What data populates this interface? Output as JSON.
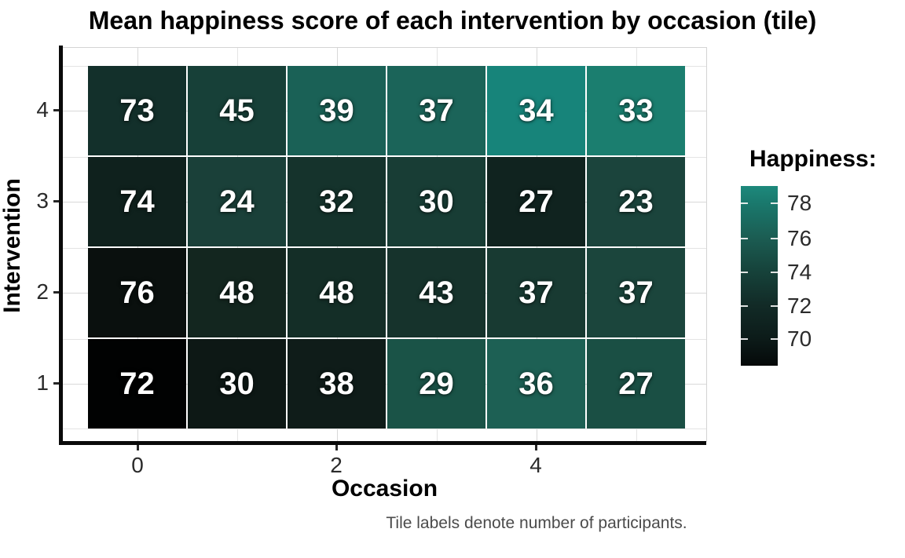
{
  "title": "Mean happiness score of each intervention by occasion (tile)",
  "caption": "Tile labels denote number of participants.",
  "axes": {
    "x_label": "Occasion",
    "y_label": "Intervention",
    "x_ticks": [
      "0",
      "2",
      "4"
    ],
    "y_ticks": [
      "4",
      "3",
      "2",
      "1"
    ]
  },
  "legend": {
    "title": "Happiness:",
    "ticks": [
      "78",
      "76",
      "74",
      "72",
      "70"
    ],
    "gradient_stops": [
      "#050909",
      "#0c1b19",
      "#122b27",
      "#16433b",
      "#1b5b51",
      "#1a786c",
      "#1d897c"
    ],
    "gradient_stop_positions_pct": [
      0,
      15,
      34,
      53,
      70,
      90,
      100
    ]
  },
  "chart_data": {
    "type": "heatmap",
    "title": "Mean happiness score of each intervention by occasion (tile)",
    "xlabel": "Occasion",
    "ylabel": "Intervention",
    "x_values": [
      0,
      1,
      2,
      3,
      4,
      5
    ],
    "y_values_top_to_bottom": [
      4,
      3,
      2,
      1
    ],
    "x_axis_tick_labels": [
      0,
      2,
      4
    ],
    "y_axis_tick_labels": [
      4,
      3,
      2,
      1
    ],
    "fill_variable": "Happiness",
    "fill_scale": {
      "legend_title": "Happiness:",
      "legend_ticks": [
        78,
        76,
        74,
        72,
        70
      ],
      "approx_value_range": [
        68.4,
        79.0
      ],
      "low_color": "#050909",
      "high_color": "#1d897c"
    },
    "tile_label_meaning": "number of participants",
    "rows": [
      {
        "intervention": 4,
        "participants": [
          73,
          45,
          39,
          37,
          34,
          33
        ],
        "mean_happiness_estimated_from_color": [
          72.5,
          74.0,
          76.5,
          76.5,
          79.0,
          78.5
        ],
        "tile_colors": [
          "#13302b",
          "#174038",
          "#1a6156",
          "#1b6459",
          "#17847a",
          "#1b7e6f"
        ]
      },
      {
        "intervention": 3,
        "participants": [
          74,
          24,
          32,
          30,
          27,
          23
        ],
        "mean_happiness_estimated_from_color": [
          71.5,
          74.0,
          72.5,
          73.5,
          71.5,
          74.0
        ],
        "tile_colors": [
          "#0f211d",
          "#1a4039",
          "#15332c",
          "#183d35",
          "#10231f",
          "#1b443c"
        ]
      },
      {
        "intervention": 2,
        "participants": [
          76,
          48,
          48,
          43,
          37,
          37
        ],
        "mean_happiness_estimated_from_color": [
          69.0,
          71.5,
          72.0,
          72.5,
          73.0,
          74.0
        ],
        "tile_colors": [
          "#0a100e",
          "#13261f",
          "#142e27",
          "#16332c",
          "#183a32",
          "#1b453c"
        ]
      },
      {
        "intervention": 1,
        "participants": [
          72,
          30,
          38,
          29,
          36,
          27
        ],
        "mean_happiness_estimated_from_color": [
          68.5,
          70.0,
          70.5,
          75.5,
          76.5,
          75.0
        ],
        "tile_colors": [
          "#010202",
          "#0d1815",
          "#0f1c19",
          "#1a5347",
          "#1d6054",
          "#1a4f44"
        ]
      }
    ],
    "caption": "Tile labels denote number of participants."
  }
}
